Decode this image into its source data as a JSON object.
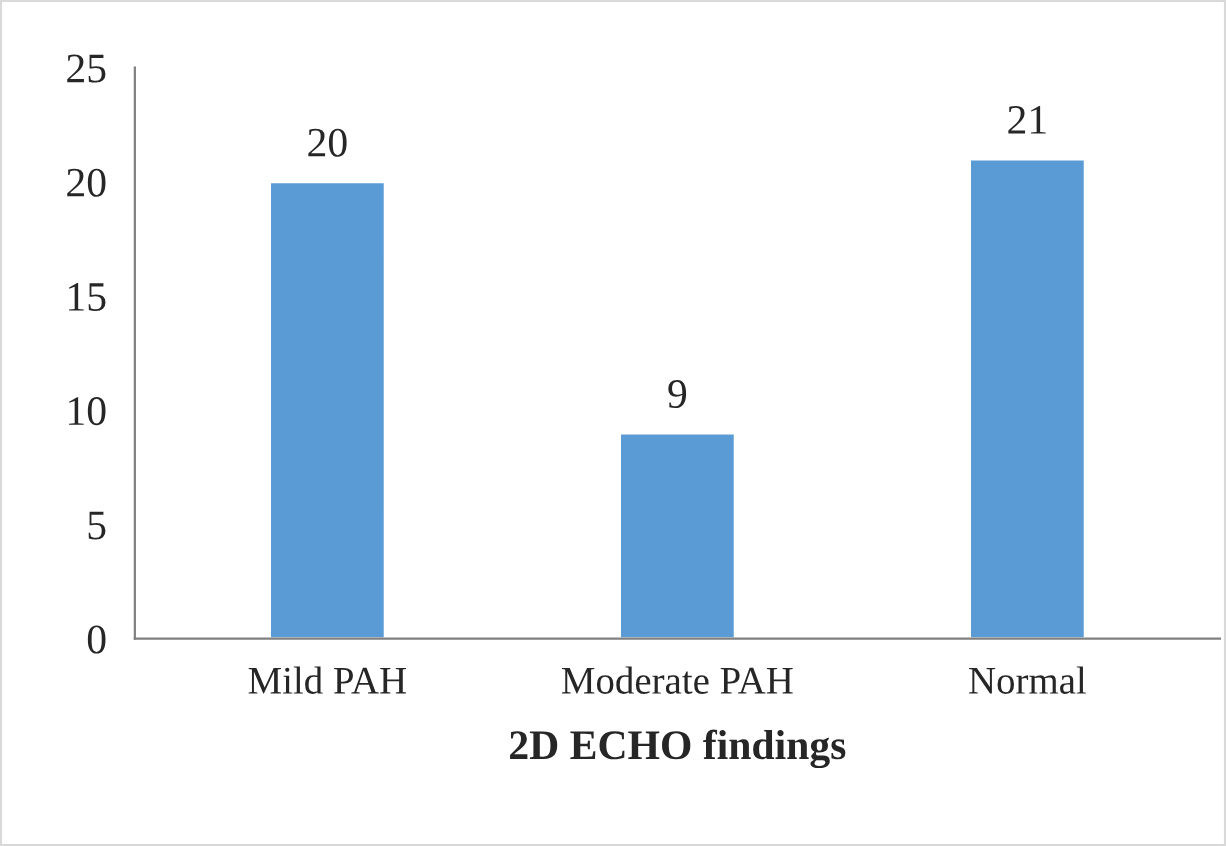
{
  "chart_data": {
    "type": "bar",
    "xlabel": "2D ECHO findings",
    "categories": [
      "Mild PAH",
      "Moderate PAH",
      "Normal"
    ],
    "values": [
      20,
      9,
      21
    ],
    "color": "#5b9bd5",
    "ylim": [
      0,
      25
    ],
    "yticks": [
      0,
      5,
      10,
      15,
      20,
      25
    ],
    "data_labels": true,
    "grid": false,
    "legend": false
  }
}
